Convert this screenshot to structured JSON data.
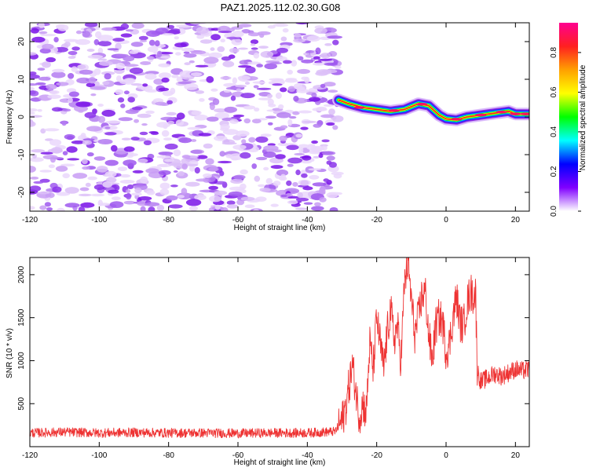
{
  "title": "PAZ1.2025.112.02.30.G08",
  "chart_data": [
    {
      "type": "heatmap",
      "title": "PAZ1.2025.112.02.30.G08",
      "xlabel": "Height of straight line (km)",
      "ylabel": "Frequency (Hz)",
      "xlim": [
        -120,
        24
      ],
      "ylim": [
        -25,
        25
      ],
      "xticks": [
        -120,
        -100,
        -80,
        -60,
        -40,
        -20,
        0,
        20
      ],
      "yticks": [
        -20,
        -10,
        0,
        10,
        20
      ],
      "noise_region_x": [
        -120,
        -31
      ],
      "signal_ridge": {
        "x": [
          -31,
          -28,
          -24,
          -20,
          -16,
          -12,
          -8,
          -5,
          -2,
          0,
          3,
          6,
          10,
          14,
          18,
          20,
          24
        ],
        "frequency": [
          4.5,
          3.5,
          2.5,
          2.0,
          1.5,
          2.0,
          3.5,
          3.0,
          0.5,
          -0.5,
          -0.8,
          0.0,
          0.5,
          1.0,
          1.5,
          0.8,
          0.8
        ]
      },
      "colorbar": {
        "label": "Normalized spectral amplitude",
        "range": [
          0.0,
          0.95
        ],
        "ticks": [
          "0.0",
          "0.2",
          "0.4",
          "0.6",
          "0.8"
        ],
        "colors": [
          "#ff0090",
          "#ff2020",
          "#ffa000",
          "#ffff00",
          "#00ff00",
          "#00ffff",
          "#0000ff",
          "#8000ff",
          "#ffffff"
        ]
      }
    },
    {
      "type": "line",
      "xlabel": "Height of straight line (km)",
      "ylabel": "SNR (10 * v/v)",
      "xlim": [
        -120,
        24
      ],
      "ylim": [
        0,
        2200
      ],
      "xticks": [
        -120,
        -100,
        -80,
        -60,
        -40,
        -20,
        0,
        20
      ],
      "yticks": [
        500,
        1000,
        1500,
        2000
      ],
      "series": [
        {
          "name": "SNR",
          "color": "#ee3333",
          "x": [
            -120,
            -110,
            -100,
            -90,
            -80,
            -70,
            -60,
            -50,
            -40,
            -35,
            -32,
            -30,
            -29,
            -28,
            -27,
            -26,
            -25,
            -24,
            -23,
            -22,
            -21,
            -20,
            -19,
            -18,
            -17,
            -16,
            -15,
            -14,
            -13,
            -12,
            -11,
            -10,
            -9,
            -8,
            -7,
            -6,
            -5,
            -4,
            -3,
            -2,
            -1,
            0,
            1,
            2,
            3,
            4,
            5,
            6,
            7,
            8,
            8.5,
            9,
            10,
            12,
            14,
            16,
            18,
            20,
            22,
            24
          ],
          "y": [
            160,
            170,
            160,
            165,
            160,
            160,
            155,
            160,
            160,
            170,
            175,
            300,
            450,
            700,
            950,
            650,
            350,
            500,
            400,
            1200,
            900,
            1500,
            1200,
            900,
            1300,
            1600,
            1250,
            1400,
            1000,
            1900,
            2150,
            1700,
            1300,
            1500,
            1750,
            1800,
            1300,
            1000,
            1400,
            1500,
            1450,
            1100,
            1200,
            1500,
            1750,
            1450,
            1400,
            1650,
            1800,
            1750,
            1800,
            900,
            750,
            800,
            850,
            820,
            860,
            900,
            880,
            900
          ]
        }
      ]
    }
  ]
}
